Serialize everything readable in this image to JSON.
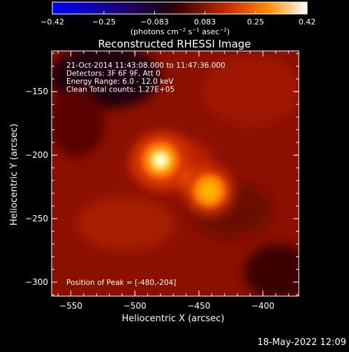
{
  "chart_data": {
    "type": "heatmap",
    "title": "Reconstructed RHESSI Image",
    "xlabel": "Heliocentric X (arcsec)",
    "ylabel": "Heliocentric Y (arcsec)",
    "xlim": [
      -565,
      -372
    ],
    "ylim": [
      -311,
      -118
    ],
    "xticks": [
      -550,
      -500,
      -450,
      -400
    ],
    "xtick_labels": [
      "−550",
      "−500",
      "−450",
      "−400"
    ],
    "yticks": [
      -150,
      -200,
      -250,
      -300
    ],
    "ytick_labels": [
      "−150",
      "−200",
      "−250",
      "−300"
    ],
    "colorbar": {
      "range": [
        -0.42,
        0.42
      ],
      "ticks": [
        -0.42,
        -0.25,
        -0.083,
        0.083,
        0.25,
        0.42
      ],
      "tick_labels": [
        "−0.42",
        "−0.25",
        "−0.083",
        "0.083",
        "0.25",
        "0.42"
      ],
      "units_prefix": "(photons cm",
      "units_exp1": "−2",
      "units_mid1": " s",
      "units_exp2": "−1",
      "units_mid2": " asec",
      "units_exp3": "−2",
      "units_suffix": ")"
    },
    "sources": [
      {
        "x": -480,
        "y": -204,
        "peak": 0.42,
        "width": 9
      },
      {
        "x": -442,
        "y": -228,
        "peak": 0.33,
        "width": 8
      }
    ],
    "info_lines": [
      "21-Oct-2014 11:43:08.000 to 11:47:36.000",
      "Detectors: 3F 6F 9F, Att 0",
      "Energy Range: 6.0 - 12.0 keV",
      "Clean    Total counts: 1.27E+05"
    ],
    "peak_label": "Position of Peak = [-480,-204]",
    "colormap": [
      "#0000ff",
      "#000060",
      "#000000",
      "#600000",
      "#ff8000",
      "#ffffff"
    ]
  },
  "footer": {
    "date": "18-May-2022 12:09"
  }
}
